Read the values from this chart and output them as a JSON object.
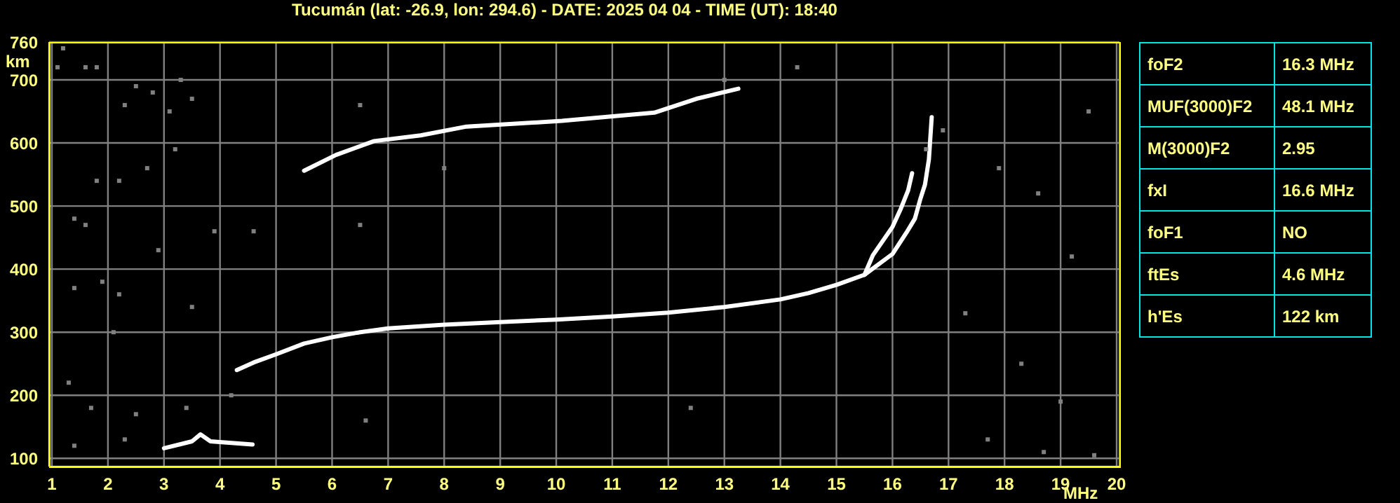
{
  "chart_data": [
    {
      "type": "line",
      "title": "Tucumán (lat: -26.9, lon: 294.6) - DATE: 2025 04 04 - TIME (UT): 18:40",
      "xlabel": "MHz",
      "ylabel": "km",
      "xlim": [
        0.95,
        20.05
      ],
      "xticks": [
        1,
        2,
        3,
        4,
        5,
        6,
        7,
        8,
        9,
        10,
        11,
        12,
        13,
        14,
        15,
        16,
        17,
        18,
        19,
        20
      ],
      "ylim": [
        87,
        760
      ],
      "yticks": [
        100,
        200,
        300,
        400,
        500,
        600,
        700,
        760
      ],
      "grid": true,
      "series": [
        {
          "color": "#ffffff",
          "x": [
            4.3,
            4.6,
            5,
            5.5,
            6,
            6.5,
            7,
            8,
            9,
            10,
            11,
            12,
            13,
            14,
            14.5,
            15,
            15.5,
            15.65,
            16,
            16.15,
            16.28,
            16.35
          ],
          "values": [
            240,
            252,
            265,
            282,
            292,
            300,
            306,
            312,
            316,
            320,
            325,
            331,
            340,
            352,
            362,
            375,
            391,
            422,
            467,
            496,
            525,
            552
          ]
        },
        {
          "color": "#ffffff",
          "x": [
            15.5,
            16,
            16.25,
            16.4,
            16.5,
            16.58,
            16.65,
            16.7
          ],
          "values": [
            391,
            424,
            458,
            480,
            512,
            534,
            574,
            641
          ]
        },
        {
          "color": "#ffffff",
          "x": [
            5.5,
            6.07,
            6.75,
            7.58,
            8.4,
            10.1,
            11.75,
            12.5,
            13.25
          ],
          "values": [
            556,
            581,
            603,
            612,
            626,
            635,
            648,
            670,
            686
          ]
        },
        {
          "color": "#ffffff",
          "x": [
            3,
            3.5,
            3.65,
            3.83,
            4.58
          ],
          "values": [
            116,
            127,
            138,
            127,
            122
          ]
        },
        {
          "type": "scatter",
          "marker": "square",
          "color": "#808080",
          "x": [
            1.1,
            1.2,
            1.6,
            1.8,
            2.5,
            2.8,
            2.3,
            3.1,
            3.5,
            3.3,
            2.7,
            3.2,
            1.8,
            2.2,
            1.4,
            1.6,
            2.9,
            3.9,
            4.6,
            1.4,
            2.2,
            3.5,
            1.9,
            2.1,
            1.3,
            1.7,
            2.5,
            3.4,
            4.2,
            1.4,
            2.3,
            6.6,
            13,
            14.3,
            16.9,
            17.9,
            18.6,
            19.5,
            19.2,
            17.3,
            18.3,
            19,
            17.7,
            18.7,
            19.6,
            8,
            12.4,
            16.6,
            6.5,
            6.5
          ],
          "values": [
            720,
            750,
            720,
            720,
            690,
            680,
            660,
            650,
            670,
            700,
            560,
            590,
            540,
            540,
            480,
            470,
            430,
            460,
            460,
            370,
            360,
            340,
            380,
            300,
            220,
            180,
            170,
            180,
            200,
            120,
            130,
            160,
            700,
            720,
            620,
            560,
            520,
            650,
            420,
            330,
            250,
            190,
            130,
            110,
            105,
            560,
            180,
            590,
            470,
            660
          ]
        }
      ]
    },
    {
      "type": "other",
      "annotations": [
        "foF2",
        "16.3 MHz",
        "MUF(3000)F2",
        "48.1 MHz",
        "M(3000)F2",
        "2.95",
        "fxI",
        "16.6 MHz",
        "foF1",
        "NO",
        "ftEs",
        "4.6 MHz",
        "h'Es",
        "122 km"
      ]
    }
  ]
}
